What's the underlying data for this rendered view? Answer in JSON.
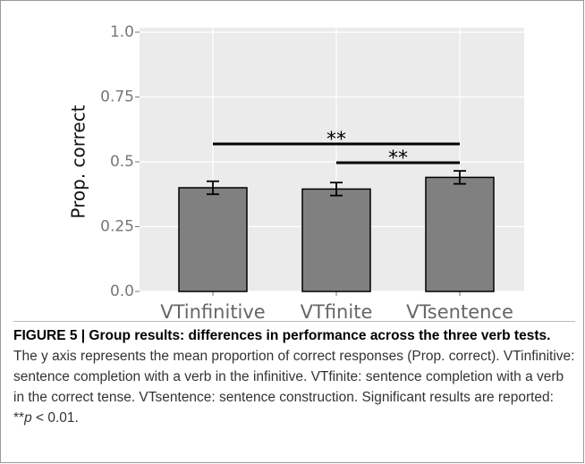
{
  "chart_data": {
    "type": "bar",
    "categories": [
      "VTinfinitive",
      "VTfinite",
      "VTsentence"
    ],
    "values": [
      0.4,
      0.395,
      0.44
    ],
    "errors": [
      0.025,
      0.025,
      0.025
    ],
    "color": "#808080",
    "y_label": "Prop. correct",
    "ylim": [
      0,
      1.0
    ],
    "yticks": [
      {
        "value": 0,
        "label": "0.0"
      },
      0.25,
      0.5,
      0.75,
      {
        "value": 1.0,
        "label": "1.0"
      }
    ],
    "grid": true,
    "annotations": [
      {
        "from": 0,
        "to": 2,
        "text": "**"
      },
      {
        "from": 1,
        "to": 2,
        "text": "**"
      }
    ]
  },
  "caption": {
    "bold": "FIGURE 5 | Group results: differences in performance across the three verb tests.",
    "text": " The y axis represents the mean proportion of correct responses (Prop. correct). VTinfinitive: sentence completion with a verb in the infinitive. VTfinite: sentence completion with a verb in the correct tense. VTsentence: sentence construction. Significant results are reported: ",
    "sig_marker": "**",
    "sig_p": "p",
    "sig_rest": " < 0.01."
  }
}
